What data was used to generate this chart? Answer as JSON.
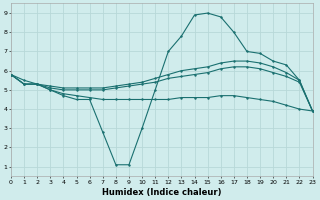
{
  "xlabel": "Humidex (Indice chaleur)",
  "xlim": [
    0,
    23
  ],
  "ylim": [
    0.5,
    9.5
  ],
  "bg_color": "#d0ecec",
  "grid_color": "#b8d8d8",
  "line_color": "#1a7070",
  "xticks": [
    0,
    1,
    2,
    3,
    4,
    5,
    6,
    7,
    8,
    9,
    10,
    11,
    12,
    13,
    14,
    15,
    16,
    17,
    18,
    19,
    20,
    21,
    22,
    23
  ],
  "yticks": [
    1,
    2,
    3,
    4,
    5,
    6,
    7,
    8,
    9
  ],
  "line_dip": {
    "x": [
      0,
      1,
      2,
      3,
      4,
      5,
      6,
      7,
      8,
      9,
      10,
      11,
      12,
      13,
      14,
      15,
      16,
      17,
      18,
      19,
      20,
      21,
      22,
      23
    ],
    "y": [
      5.8,
      5.3,
      5.3,
      5.0,
      4.7,
      4.5,
      4.5,
      2.8,
      1.1,
      1.1,
      3.0,
      5.0,
      7.0,
      7.8,
      8.9,
      9.0,
      8.8,
      8.0,
      7.0,
      6.9,
      6.5,
      6.3,
      5.5,
      3.9
    ]
  },
  "line_upper": {
    "x": [
      0,
      1,
      2,
      3,
      4,
      5,
      6,
      7,
      8,
      9,
      10,
      11,
      12,
      13,
      14,
      15,
      16,
      17,
      18,
      19,
      20,
      21,
      22,
      23
    ],
    "y": [
      5.8,
      5.3,
      5.3,
      5.2,
      5.1,
      5.1,
      5.1,
      5.1,
      5.2,
      5.3,
      5.4,
      5.6,
      5.8,
      6.0,
      6.1,
      6.2,
      6.4,
      6.5,
      6.5,
      6.4,
      6.2,
      5.9,
      5.5,
      3.9
    ]
  },
  "line_mid": {
    "x": [
      0,
      1,
      2,
      3,
      4,
      5,
      6,
      7,
      8,
      9,
      10,
      11,
      12,
      13,
      14,
      15,
      16,
      17,
      18,
      19,
      20,
      21,
      22,
      23
    ],
    "y": [
      5.8,
      5.3,
      5.3,
      5.1,
      5.0,
      5.0,
      5.0,
      5.0,
      5.1,
      5.2,
      5.3,
      5.4,
      5.6,
      5.7,
      5.8,
      5.9,
      6.1,
      6.2,
      6.2,
      6.1,
      5.9,
      5.7,
      5.4,
      3.9
    ]
  },
  "line_diag": {
    "x": [
      0,
      1,
      2,
      3,
      4,
      5,
      6,
      7,
      8,
      9,
      10,
      11,
      12,
      13,
      14,
      15,
      16,
      17,
      18,
      19,
      20,
      21,
      22,
      23
    ],
    "y": [
      5.8,
      5.5,
      5.3,
      5.0,
      4.8,
      4.7,
      4.6,
      4.5,
      4.5,
      4.5,
      4.5,
      4.5,
      4.5,
      4.6,
      4.6,
      4.6,
      4.7,
      4.7,
      4.6,
      4.5,
      4.4,
      4.2,
      4.0,
      3.9
    ]
  }
}
